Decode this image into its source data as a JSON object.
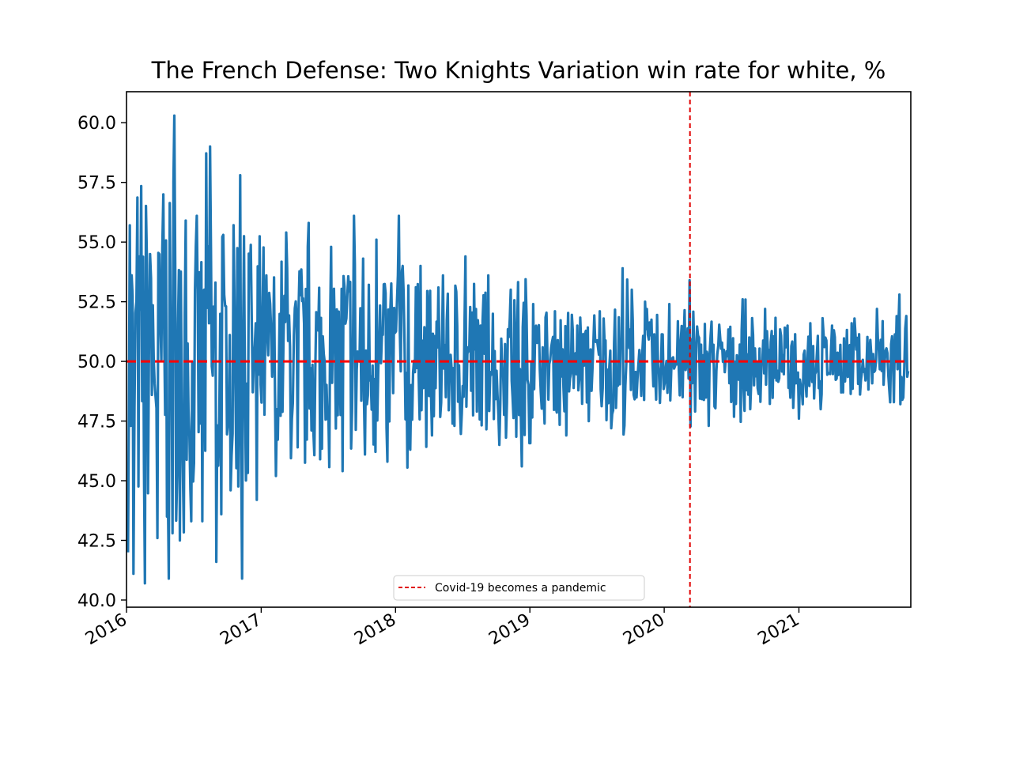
{
  "chart_data": {
    "type": "line",
    "title": "The French Defense: Two Knights Variation win rate for white, %",
    "xlabel": "",
    "ylabel": "",
    "x_range": [
      "2016-01-01",
      "2021-11-01"
    ],
    "ylim": [
      39.7,
      61.3
    ],
    "grid": false,
    "x_ticks": [
      "2016",
      "2017",
      "2018",
      "2019",
      "2020",
      "2021"
    ],
    "y_ticks": [
      "40.0",
      "42.5",
      "45.0",
      "47.5",
      "50.0",
      "52.5",
      "55.0",
      "57.5",
      "60.0"
    ],
    "series": [
      {
        "color": "#1f77b4",
        "note": "daily win rate (noisy), approximate envelope",
        "points": [
          [
            "2016-01-05",
            42.0
          ],
          [
            "2016-01-10",
            55.7
          ],
          [
            "2016-01-20",
            41.1
          ],
          [
            "2016-02-05",
            54.4
          ],
          [
            "2016-02-20",
            40.7
          ],
          [
            "2016-03-05",
            54.5
          ],
          [
            "2016-03-25",
            42.6
          ],
          [
            "2016-04-10",
            57.0
          ],
          [
            "2016-04-25",
            40.9
          ],
          [
            "2016-05-10",
            60.3
          ],
          [
            "2016-05-25",
            42.5
          ],
          [
            "2016-06-10",
            55.9
          ],
          [
            "2016-06-25",
            43.3
          ],
          [
            "2016-07-10",
            56.1
          ],
          [
            "2016-07-25",
            43.3
          ],
          [
            "2016-08-15",
            59.0
          ],
          [
            "2016-09-01",
            41.6
          ],
          [
            "2016-09-20",
            55.3
          ],
          [
            "2016-10-10",
            44.6
          ],
          [
            "2016-11-05",
            57.8
          ],
          [
            "2016-11-10",
            40.9
          ],
          [
            "2016-12-01",
            53.6
          ],
          [
            "2016-12-20",
            44.2
          ],
          [
            "2017-01-15",
            53.6
          ],
          [
            "2017-02-10",
            45.2
          ],
          [
            "2017-03-10",
            55.4
          ],
          [
            "2017-04-10",
            46.4
          ],
          [
            "2017-05-10",
            55.8
          ],
          [
            "2017-06-10",
            45.9
          ],
          [
            "2017-07-10",
            54.8
          ],
          [
            "2017-08-10",
            45.4
          ],
          [
            "2017-09-10",
            56.1
          ],
          [
            "2017-10-10",
            46.1
          ],
          [
            "2017-11-10",
            55.1
          ],
          [
            "2017-12-10",
            45.8
          ],
          [
            "2018-01-10",
            56.1
          ],
          [
            "2018-02-10",
            46.3
          ],
          [
            "2018-03-10",
            54.0
          ],
          [
            "2018-04-10",
            46.9
          ],
          [
            "2018-05-10",
            53.6
          ],
          [
            "2018-06-10",
            47.3
          ],
          [
            "2018-07-10",
            54.4
          ],
          [
            "2018-08-10",
            47.9
          ],
          [
            "2018-09-10",
            53.6
          ],
          [
            "2018-10-10",
            46.5
          ],
          [
            "2018-11-10",
            53.0
          ],
          [
            "2018-12-10",
            45.6
          ],
          [
            "2019-01-10",
            52.4
          ],
          [
            "2019-02-10",
            47.4
          ],
          [
            "2019-03-10",
            52.1
          ],
          [
            "2019-04-10",
            46.9
          ],
          [
            "2019-05-10",
            51.5
          ],
          [
            "2019-06-10",
            47.5
          ],
          [
            "2019-07-10",
            52.1
          ],
          [
            "2019-08-10",
            47.2
          ],
          [
            "2019-09-10",
            53.9
          ],
          [
            "2019-10-10",
            48.6
          ],
          [
            "2019-11-10",
            52.5
          ],
          [
            "2019-12-10",
            48.4
          ],
          [
            "2020-01-15",
            52.4
          ],
          [
            "2020-02-20",
            48.5
          ],
          [
            "2020-03-10",
            53.4
          ],
          [
            "2020-03-25",
            47.9
          ],
          [
            "2020-04-10",
            50.7
          ],
          [
            "2020-05-01",
            47.3
          ],
          [
            "2020-06-01",
            51.0
          ],
          [
            "2020-07-01",
            48.3
          ],
          [
            "2020-08-01",
            52.6
          ],
          [
            "2020-09-01",
            49.0
          ],
          [
            "2020-10-01",
            52.2
          ],
          [
            "2020-11-01",
            49.2
          ],
          [
            "2020-12-01",
            51.5
          ],
          [
            "2021-01-01",
            47.6
          ],
          [
            "2021-02-01",
            51.6
          ],
          [
            "2021-03-01",
            48.0
          ],
          [
            "2021-04-01",
            51.5
          ],
          [
            "2021-05-01",
            48.7
          ],
          [
            "2021-06-01",
            51.8
          ],
          [
            "2021-07-01",
            49.2
          ],
          [
            "2021-08-01",
            52.2
          ],
          [
            "2021-09-01",
            49.4
          ],
          [
            "2021-10-01",
            52.8
          ],
          [
            "2021-10-25",
            49.6
          ]
        ]
      }
    ],
    "reference_lines": [
      {
        "orientation": "horizontal",
        "value": 50.0,
        "color": "#ff0000",
        "style": "dashed"
      },
      {
        "orientation": "vertical",
        "value": "2020-03-11",
        "color": "#e00000",
        "style": "dashed",
        "label": "Covid-19 becomes a pandemic"
      }
    ],
    "legend": {
      "placement": "bottom-center",
      "entries": [
        "Covid-19 becomes a pandemic"
      ]
    }
  }
}
